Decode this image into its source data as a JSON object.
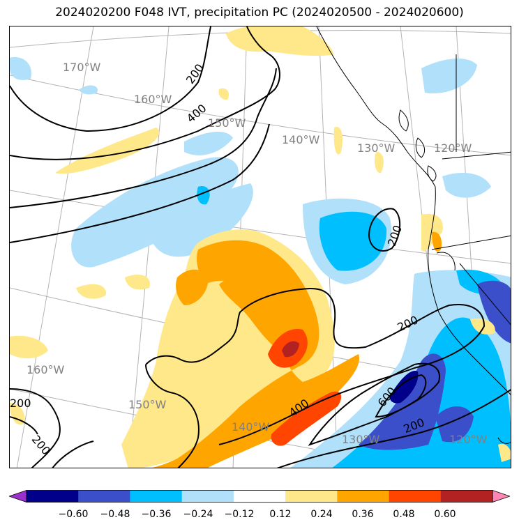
{
  "title": "2024020200 F048 IVT, precipitation PC (2024020500 - 2024020600)",
  "longitude_labels": [
    "170°W",
    "160°W",
    "150°W",
    "140°W",
    "130°W",
    "120°W",
    "160°W",
    "150°W",
    "140°W",
    "130°W",
    "120°W"
  ],
  "contour_labels": [
    "200",
    "400",
    "200",
    "200",
    "400",
    "600",
    "200",
    "200",
    "200"
  ],
  "colorbar": {
    "ticks": [
      "−0.60",
      "−0.48",
      "−0.36",
      "−0.24",
      "−0.12",
      "0.12",
      "0.24",
      "0.36",
      "0.48",
      "0.60"
    ],
    "colors": [
      "#9932cc",
      "#00008b",
      "#3a4fc9",
      "#00bfff",
      "#b0e0fa",
      "#ffffff",
      "#ffe88a",
      "#ffa500",
      "#ff4500",
      "#b22222",
      "#ff85b4"
    ]
  }
}
